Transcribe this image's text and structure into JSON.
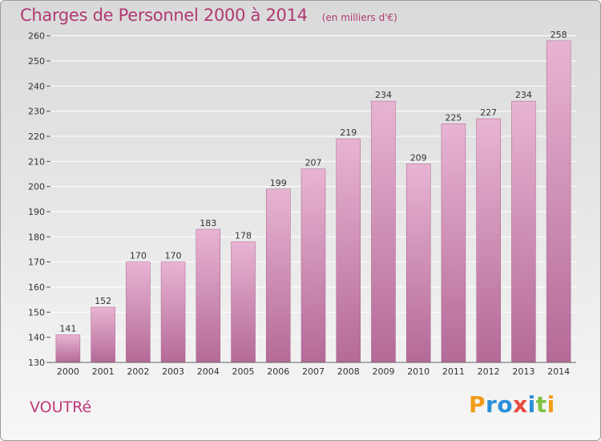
{
  "chart_data": {
    "type": "bar",
    "title": "Charges de Personnel 2000 à 2014",
    "unit_label": "(en milliers d'€)",
    "categories": [
      "2000",
      "2001",
      "2002",
      "2003",
      "2004",
      "2005",
      "2006",
      "2007",
      "2008",
      "2009",
      "2010",
      "2011",
      "2012",
      "2013",
      "2014"
    ],
    "values": [
      141,
      152,
      170,
      170,
      183,
      178,
      199,
      207,
      219,
      234,
      209,
      225,
      227,
      234,
      258
    ],
    "yticks": [
      130,
      140,
      150,
      160,
      170,
      180,
      190,
      200,
      210,
      220,
      230,
      240,
      250,
      260
    ],
    "ylim": [
      130,
      265
    ],
    "xlabel": "",
    "ylabel": "",
    "grid": true
  },
  "commune": "VOUTRé",
  "brand": {
    "letters": [
      "P",
      "r",
      "o",
      "x",
      "i",
      "t",
      "i"
    ],
    "colors": [
      "#f39c1a",
      "#2b8fd8",
      "#2b8fd8",
      "#e84c3d",
      "#2b8fd8",
      "#7cc241",
      "#f39c1a"
    ]
  },
  "colors": {
    "bar_top": "#e8b4d3",
    "bar_bottom": "#b46a97",
    "grid": "#ffffff",
    "title": "#b03a72"
  }
}
